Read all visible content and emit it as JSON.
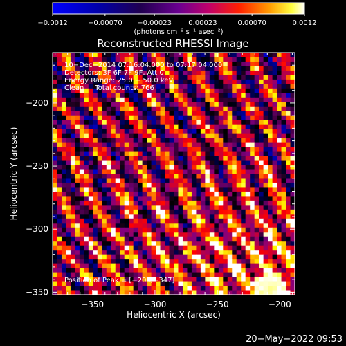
{
  "chart_data": {
    "type": "heatmap",
    "title": "Reconstructed RHESSI Image",
    "xlabel": "Heliocentric X (arcsec)",
    "ylabel": "Heliocentric Y (arcsec)",
    "xlim": [
      -382,
      -188
    ],
    "ylim": [
      -352,
      -160
    ],
    "x_ticks": [
      -350,
      -300,
      -250,
      -200
    ],
    "x_tick_labels": [
      "−350",
      "−300",
      "−250",
      "−200"
    ],
    "y_ticks": [
      -350,
      -300,
      -250,
      -200
    ],
    "y_tick_labels": [
      "−350",
      "−300",
      "−250",
      "−200"
    ],
    "colorbar": {
      "range": [
        -0.0012,
        0.0012
      ],
      "ticks": [
        -0.0012,
        -0.0007,
        -0.00023,
        0.00023,
        0.0007,
        0.0012
      ],
      "tick_labels": [
        "−0.0012",
        "−0.00070",
        "−0.00023",
        "0.00023",
        "0.00070",
        "0.0012"
      ],
      "units": "(photons cm⁻² s⁻¹ asec⁻²)",
      "colors": [
        "#0000ff",
        "#000000",
        "#800080",
        "#ff0000",
        "#ffa500",
        "#ffff00",
        "#ffffff"
      ]
    },
    "annotations": {
      "time_range": "10−Dec−2014 07:16:04.000 to 07:17:04.000",
      "detectors": "Detectors: 3F 6F 7F 9F, Att 0",
      "energy": "Energy Range: 25.0 − 50.0 keV",
      "clean": "Clean     Total counts: 766",
      "peak": "Position of Peak = [−209,−347]"
    },
    "peak_position": [
      -209,
      -347
    ],
    "grid": false
  },
  "footer": {
    "timestamp": "20−May−2022 09:53"
  }
}
